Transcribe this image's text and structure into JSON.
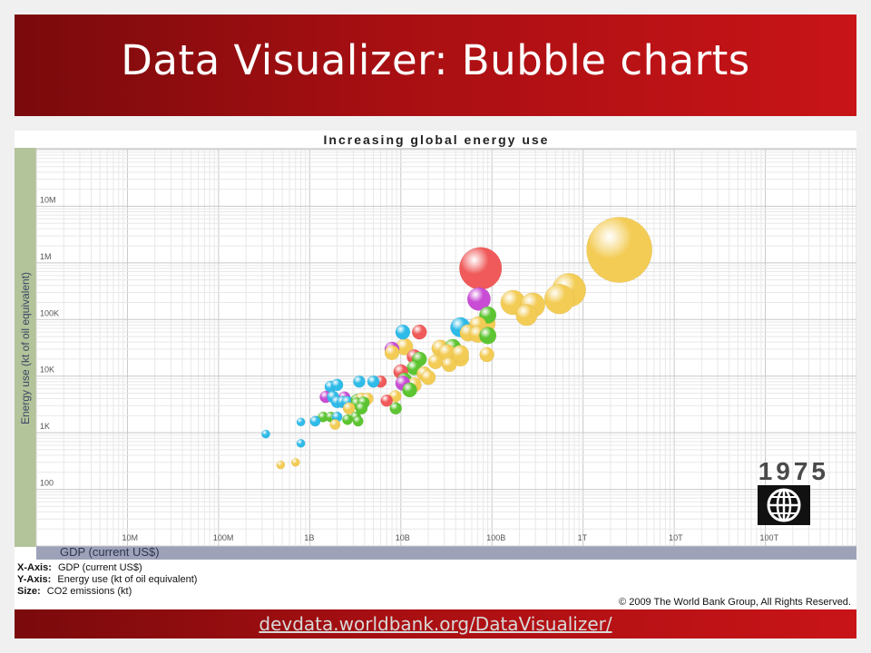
{
  "slide": {
    "title": "Data Visualizer: Bubble charts",
    "link": "devdata.worldbank.org/DataVisualizer/"
  },
  "legend": {
    "x_key": "X-Axis:",
    "x_val": "GDP (current US$)",
    "y_key": "Y-Axis:",
    "y_val": "Energy use (kt of oil equivalent)",
    "size_key": "Size:",
    "size_val": "CO2 emissions (kt)"
  },
  "copyright": "© 2009 The World Bank Group, All Rights Reserved.",
  "year": "1975",
  "logo": "world-bank-globe-icon",
  "chart_data": {
    "type": "scatter",
    "title": "Increasing global energy use",
    "xlabel": "GDP (current US$)",
    "ylabel": "Energy use (kt of oil equivalent)",
    "x_scale": "log",
    "y_scale": "log",
    "xlim": [
      1000000,
      1000000000000000
    ],
    "ylim": [
      10,
      100000000
    ],
    "x_ticks": [
      {
        "v": 10000000,
        "label": "10M"
      },
      {
        "v": 100000000,
        "label": "100M"
      },
      {
        "v": 1000000000,
        "label": "1B"
      },
      {
        "v": 10000000000,
        "label": "10B"
      },
      {
        "v": 100000000000,
        "label": "100B"
      },
      {
        "v": 1000000000000,
        "label": "1T"
      },
      {
        "v": 10000000000000,
        "label": "10T"
      },
      {
        "v": 100000000000000,
        "label": "100T"
      }
    ],
    "y_ticks": [
      {
        "v": 100,
        "label": "100"
      },
      {
        "v": 1000,
        "label": "1K"
      },
      {
        "v": 10000,
        "label": "10K"
      },
      {
        "v": 100000,
        "label": "100K"
      },
      {
        "v": 1000000,
        "label": "1M"
      },
      {
        "v": 10000000,
        "label": "10M"
      }
    ],
    "grid": true,
    "colors": {
      "yellow": "#f3cc55",
      "red": "#f05a5a",
      "magenta": "#c94cd4",
      "green": "#5cc531",
      "cyan": "#2fbbe8",
      "orange": "#f0913a",
      "axis_band": "#b3c39a",
      "x_band": "#9ea2b8"
    },
    "points": [
      {
        "x": 2500000000000,
        "y": 1700000,
        "size": 1200000,
        "color": "yellow"
      },
      {
        "x": 75000000000,
        "y": 800000,
        "size": 500000,
        "color": "red"
      },
      {
        "x": 72000000000,
        "y": 230000,
        "size": 150000,
        "color": "magenta"
      },
      {
        "x": 700000000000,
        "y": 330000,
        "size": 320000,
        "color": "yellow"
      },
      {
        "x": 550000000000,
        "y": 230000,
        "size": 250000,
        "color": "yellow"
      },
      {
        "x": 170000000000,
        "y": 200000,
        "size": 170000,
        "color": "yellow"
      },
      {
        "x": 280000000000,
        "y": 180000,
        "size": 170000,
        "color": "yellow"
      },
      {
        "x": 240000000000,
        "y": 120000,
        "size": 130000,
        "color": "yellow"
      },
      {
        "x": 90000000000,
        "y": 120000,
        "size": 80000,
        "color": "green"
      },
      {
        "x": 85000000000,
        "y": 85000,
        "size": 110000,
        "color": "yellow"
      },
      {
        "x": 70000000000,
        "y": 80000,
        "size": 80000,
        "color": "yellow"
      },
      {
        "x": 45000000000,
        "y": 73000,
        "size": 110000,
        "color": "cyan"
      },
      {
        "x": 55000000000,
        "y": 58000,
        "size": 80000,
        "color": "yellow"
      },
      {
        "x": 70000000000,
        "y": 55000,
        "size": 80000,
        "color": "yellow"
      },
      {
        "x": 90000000000,
        "y": 52000,
        "size": 80000,
        "color": "green"
      },
      {
        "x": 10500000000,
        "y": 60000,
        "size": 60000,
        "color": "cyan"
      },
      {
        "x": 16000000000,
        "y": 60000,
        "size": 60000,
        "color": "red"
      },
      {
        "x": 11000000000,
        "y": 33000,
        "size": 80000,
        "color": "yellow"
      },
      {
        "x": 27000000000,
        "y": 31000,
        "size": 80000,
        "color": "yellow"
      },
      {
        "x": 37000000000,
        "y": 32000,
        "size": 80000,
        "color": "green"
      },
      {
        "x": 32000000000,
        "y": 26000,
        "size": 80000,
        "color": "yellow"
      },
      {
        "x": 45000000000,
        "y": 21000,
        "size": 80000,
        "color": "yellow"
      },
      {
        "x": 45000000000,
        "y": 25000,
        "size": 80000,
        "color": "yellow"
      },
      {
        "x": 88000000000,
        "y": 24000,
        "size": 60000,
        "color": "yellow"
      },
      {
        "x": 8000000000,
        "y": 30000,
        "size": 60000,
        "color": "magenta"
      },
      {
        "x": 8000000000,
        "y": 26000,
        "size": 60000,
        "color": "yellow"
      },
      {
        "x": 14000000000,
        "y": 22000,
        "size": 60000,
        "color": "red"
      },
      {
        "x": 16000000000,
        "y": 20000,
        "size": 60000,
        "color": "green"
      },
      {
        "x": 24000000000,
        "y": 18000,
        "size": 60000,
        "color": "yellow"
      },
      {
        "x": 34000000000,
        "y": 16000,
        "size": 60000,
        "color": "yellow"
      },
      {
        "x": 14000000000,
        "y": 14000,
        "size": 60000,
        "color": "green"
      },
      {
        "x": 10000000000,
        "y": 12000,
        "size": 60000,
        "color": "red"
      },
      {
        "x": 18000000000,
        "y": 11000,
        "size": 60000,
        "color": "yellow"
      },
      {
        "x": 20000000000,
        "y": 9500,
        "size": 60000,
        "color": "yellow"
      },
      {
        "x": 11000000000,
        "y": 8500,
        "size": 60000,
        "color": "green"
      },
      {
        "x": 14000000000,
        "y": 7000,
        "size": 60000,
        "color": "yellow"
      },
      {
        "x": 10500000000,
        "y": 7500,
        "size": 60000,
        "color": "magenta"
      },
      {
        "x": 12500000000,
        "y": 5700,
        "size": 60000,
        "color": "green"
      },
      {
        "x": 6000000000,
        "y": 8000,
        "size": 40000,
        "color": "red"
      },
      {
        "x": 3500000000,
        "y": 8000,
        "size": 40000,
        "color": "cyan"
      },
      {
        "x": 5000000000,
        "y": 8000,
        "size": 40000,
        "color": "cyan"
      },
      {
        "x": 1700000000,
        "y": 6500,
        "size": 40000,
        "color": "cyan"
      },
      {
        "x": 2000000000,
        "y": 7000,
        "size": 40000,
        "color": "cyan"
      },
      {
        "x": 1500000000,
        "y": 4300,
        "size": 40000,
        "color": "magenta"
      },
      {
        "x": 1800000000,
        "y": 4300,
        "size": 40000,
        "color": "cyan"
      },
      {
        "x": 2400000000,
        "y": 4200,
        "size": 40000,
        "color": "magenta"
      },
      {
        "x": 2000000000,
        "y": 3500,
        "size": 40000,
        "color": "cyan"
      },
      {
        "x": 2300000000,
        "y": 3500,
        "size": 40000,
        "color": "cyan"
      },
      {
        "x": 2600000000,
        "y": 3500,
        "size": 40000,
        "color": "cyan"
      },
      {
        "x": 3300000000,
        "y": 3800,
        "size": 40000,
        "color": "green"
      },
      {
        "x": 3700000000,
        "y": 4000,
        "size": 40000,
        "color": "yellow"
      },
      {
        "x": 4300000000,
        "y": 4000,
        "size": 40000,
        "color": "yellow"
      },
      {
        "x": 3300000000,
        "y": 3300,
        "size": 40000,
        "color": "green"
      },
      {
        "x": 3900000000,
        "y": 3400,
        "size": 40000,
        "color": "green"
      },
      {
        "x": 2700000000,
        "y": 2700,
        "size": 40000,
        "color": "yellow"
      },
      {
        "x": 3700000000,
        "y": 2700,
        "size": 40000,
        "color": "green"
      },
      {
        "x": 8700000000,
        "y": 4400,
        "size": 40000,
        "color": "yellow"
      },
      {
        "x": 7000000000,
        "y": 3700,
        "size": 40000,
        "color": "red"
      },
      {
        "x": 8800000000,
        "y": 2700,
        "size": 40000,
        "color": "green"
      },
      {
        "x": 1400000000,
        "y": 1900,
        "size": 30000,
        "color": "green"
      },
      {
        "x": 1700000000,
        "y": 1900,
        "size": 30000,
        "color": "green"
      },
      {
        "x": 1900000000,
        "y": 1800,
        "size": 30000,
        "color": "green"
      },
      {
        "x": 2000000000,
        "y": 1900,
        "size": 30000,
        "color": "cyan"
      },
      {
        "x": 2600000000,
        "y": 1700,
        "size": 30000,
        "color": "green"
      },
      {
        "x": 3200000000,
        "y": 1900,
        "size": 30000,
        "color": "green"
      },
      {
        "x": 3400000000,
        "y": 1600,
        "size": 30000,
        "color": "green"
      },
      {
        "x": 1900000000,
        "y": 1400,
        "size": 30000,
        "color": "yellow"
      },
      {
        "x": 1150000000,
        "y": 1600,
        "size": 30000,
        "color": "cyan"
      },
      {
        "x": 800000000,
        "y": 1550,
        "size": 20000,
        "color": "cyan"
      },
      {
        "x": 330000000,
        "y": 950,
        "size": 20000,
        "color": "cyan"
      },
      {
        "x": 800000000,
        "y": 650,
        "size": 20000,
        "color": "cyan"
      },
      {
        "x": 480000000,
        "y": 270,
        "size": 20000,
        "color": "yellow"
      },
      {
        "x": 700000000,
        "y": 300,
        "size": 20000,
        "color": "yellow"
      }
    ]
  }
}
